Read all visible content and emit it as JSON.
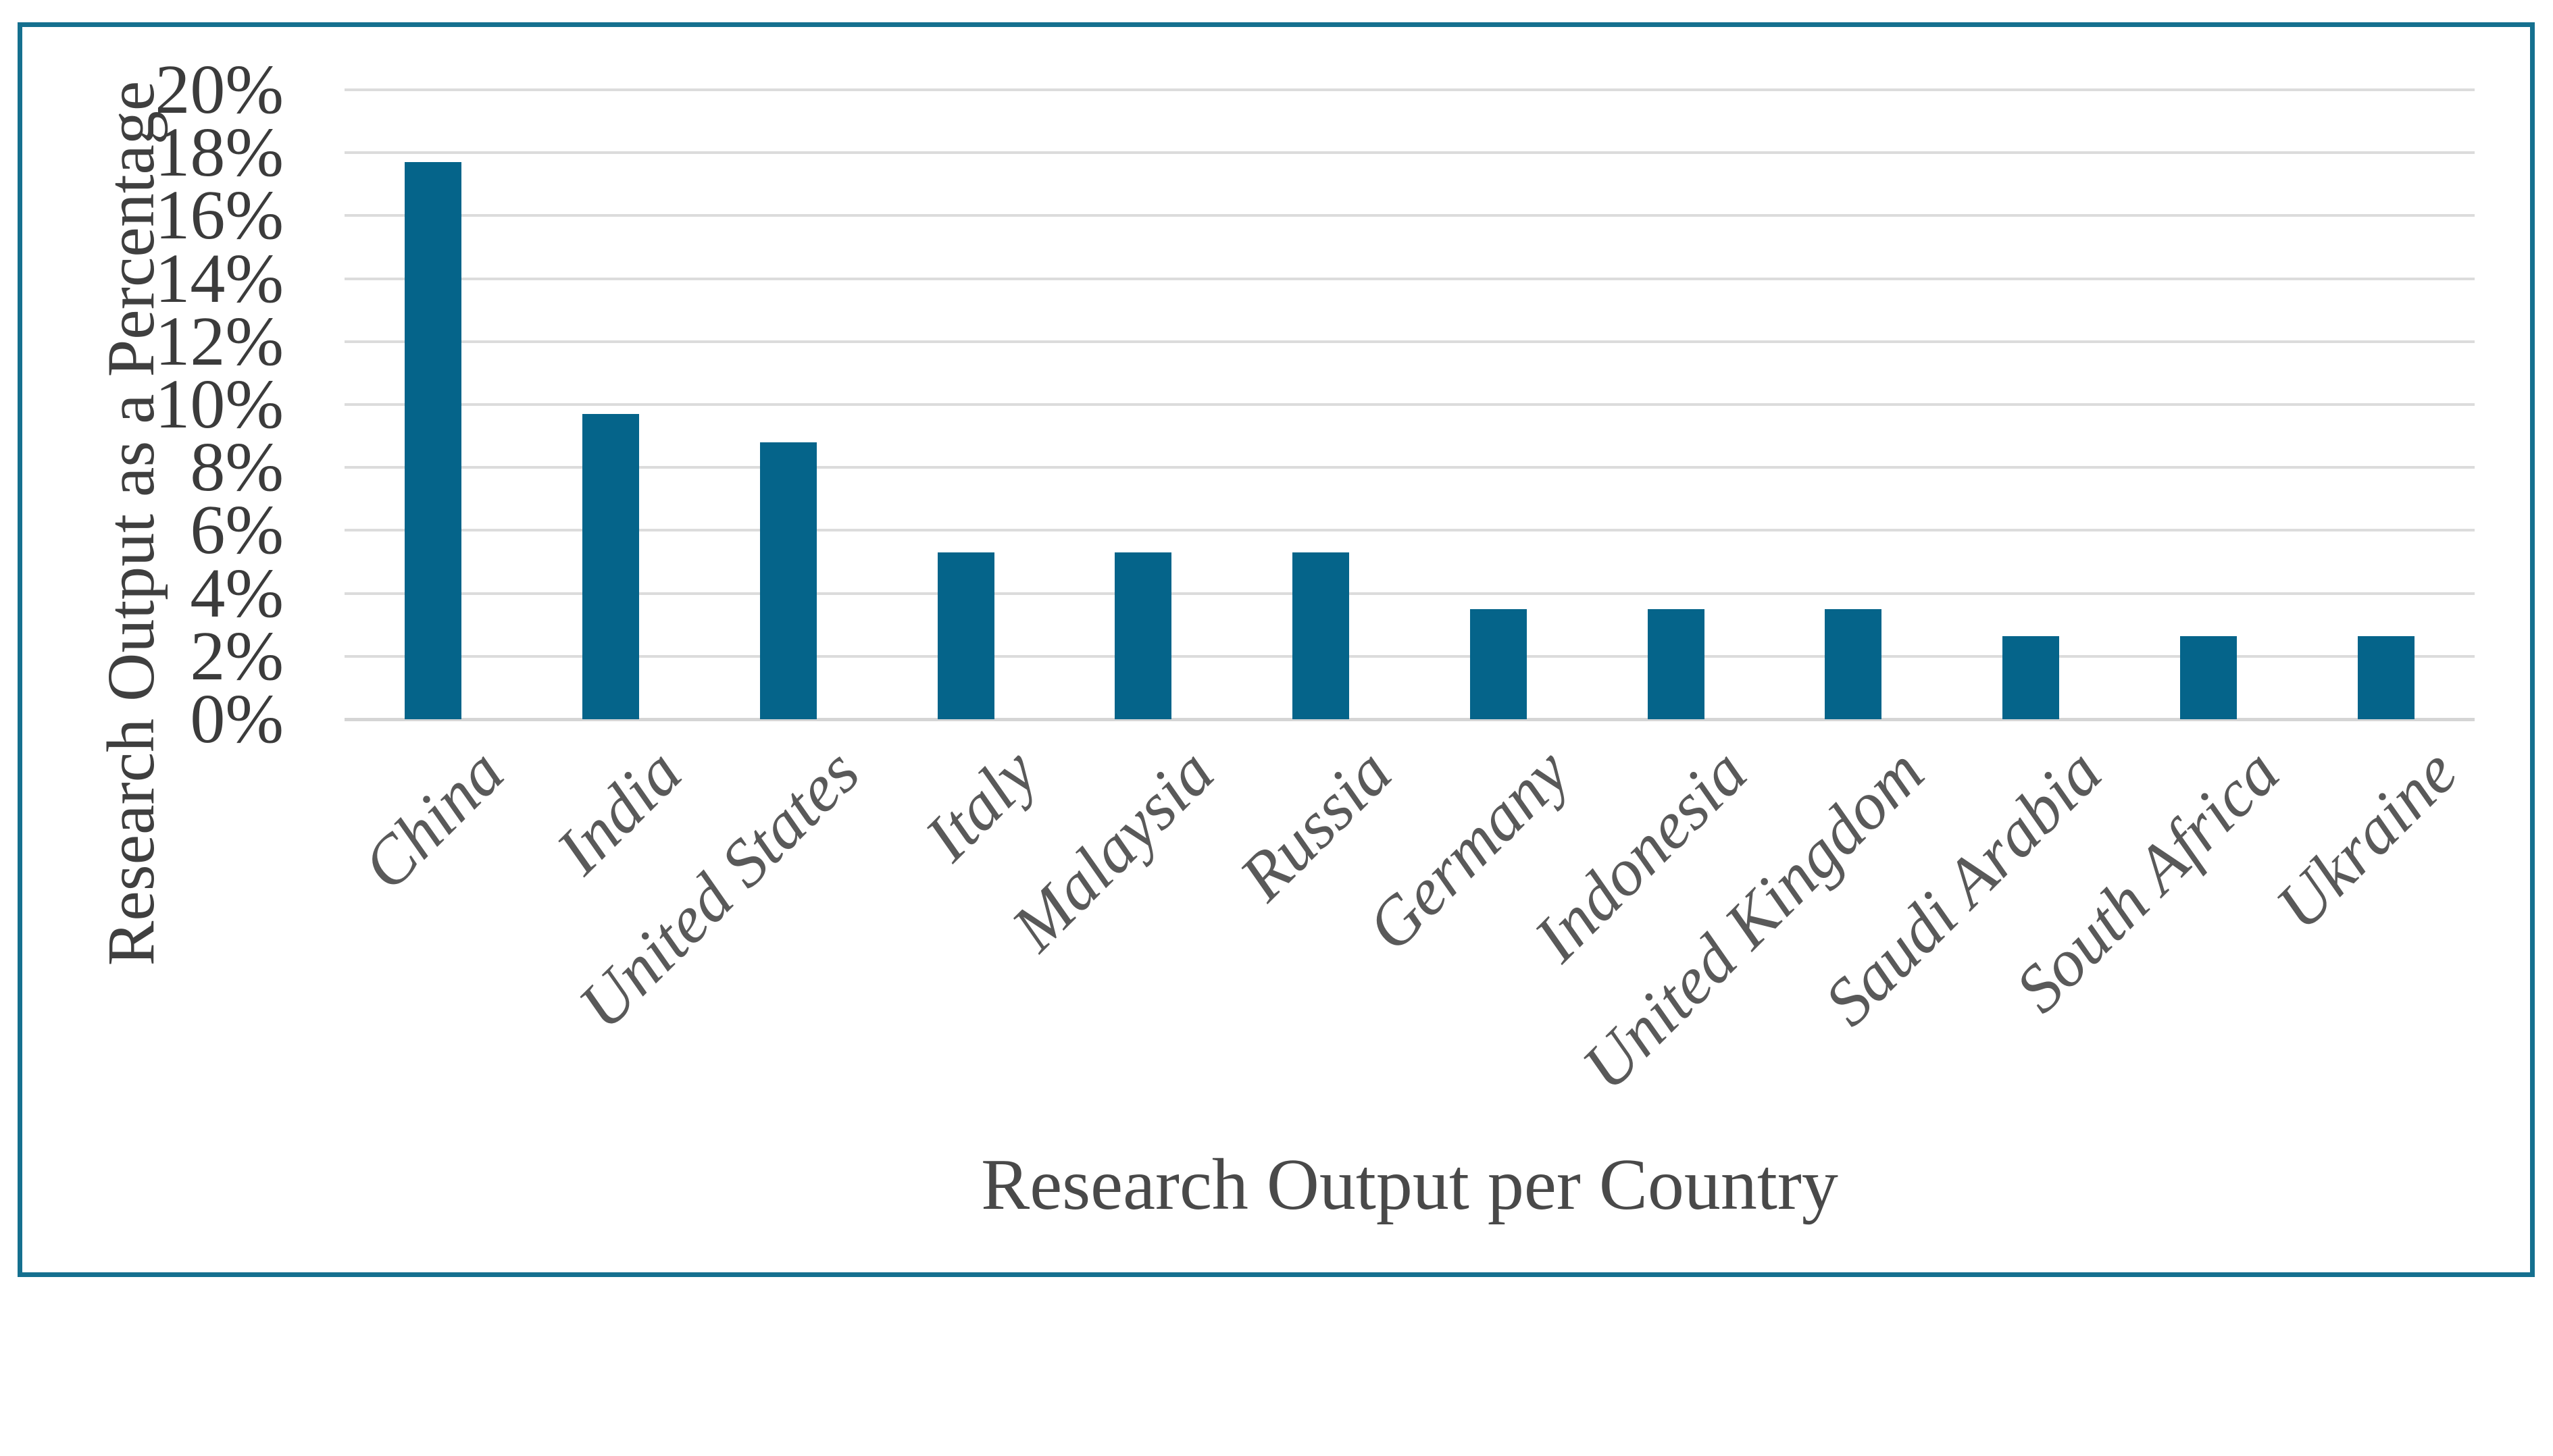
{
  "chart_data": {
    "type": "bar",
    "title": "",
    "xlabel": "Research Output per Country",
    "ylabel": "Research Output as a Percentage",
    "categories": [
      "China",
      "India",
      "United States",
      "Italy",
      "Malaysia",
      "Russia",
      "Germany",
      "Indonesia",
      "United Kingdom",
      "Saudi Arabia",
      "South Africa",
      "Ukraine"
    ],
    "values": [
      17.7,
      9.7,
      8.8,
      5.3,
      5.3,
      5.3,
      3.5,
      3.5,
      3.5,
      2.65,
      2.65,
      2.65
    ],
    "unit": "%",
    "y_ticks": [
      "0%",
      "2%",
      "4%",
      "6%",
      "8%",
      "10%",
      "12%",
      "14%",
      "16%",
      "18%",
      "20%"
    ],
    "ylim": [
      0,
      20
    ],
    "y_tick_step": 2,
    "grid": "horizontal-only",
    "legend": "none",
    "colors": {
      "bar": "#05648A",
      "frame_border": "#15708F",
      "gridline": "#DCDCDC",
      "y_tick_label": "#3B3B3B",
      "x_category_label": "#595959",
      "axis_title": "#3F3F3F",
      "background": "#FFFFFF"
    }
  }
}
